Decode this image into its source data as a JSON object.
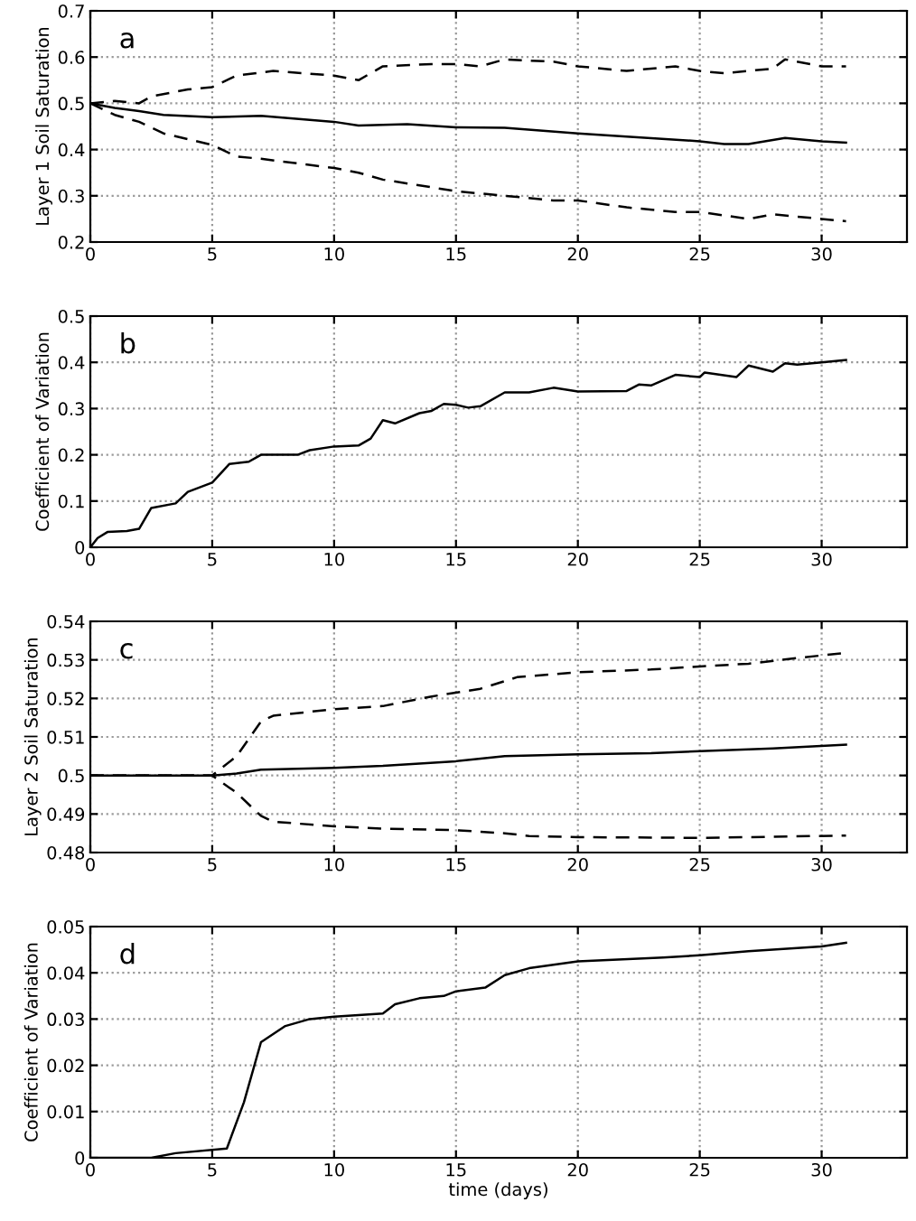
{
  "chart_data": [
    {
      "type": "line",
      "ylabel": "Layer 1 Soil Saturation",
      "annotations": [
        "a"
      ],
      "xlim": [
        0,
        33.5
      ],
      "xticks": [
        0,
        5,
        10,
        15,
        20,
        25,
        30
      ],
      "ylim": [
        0.2,
        0.7
      ],
      "yticks": [
        0.2,
        0.3,
        0.4,
        0.5,
        0.6,
        0.7
      ],
      "grid": true,
      "series": [
        {
          "color": "#000000",
          "line_style": "dashed",
          "x": [
            0,
            1,
            2,
            2.5,
            4,
            5,
            6,
            7.5,
            10,
            11,
            12,
            14,
            15,
            16,
            17,
            19,
            20,
            22,
            24,
            25,
            26,
            28,
            28.5,
            30,
            31
          ],
          "values": [
            0.5,
            0.505,
            0.5,
            0.515,
            0.53,
            0.535,
            0.56,
            0.57,
            0.56,
            0.55,
            0.58,
            0.585,
            0.585,
            0.58,
            0.595,
            0.59,
            0.58,
            0.57,
            0.58,
            0.57,
            0.565,
            0.575,
            0.595,
            0.58,
            0.58
          ]
        },
        {
          "color": "#000000",
          "line_style": "solid",
          "x": [
            0,
            1,
            2,
            3,
            5,
            7,
            10,
            11,
            13,
            15,
            17,
            20,
            22,
            25,
            26,
            27,
            28.5,
            30,
            31
          ],
          "values": [
            0.5,
            0.49,
            0.483,
            0.475,
            0.47,
            0.473,
            0.46,
            0.452,
            0.455,
            0.448,
            0.447,
            0.435,
            0.428,
            0.418,
            0.412,
            0.412,
            0.425,
            0.418,
            0.415
          ]
        },
        {
          "color": "#000000",
          "line_style": "dashed",
          "x": [
            0,
            1,
            2,
            3,
            5,
            6,
            7,
            10,
            11,
            12,
            15,
            17,
            19,
            20,
            22,
            24,
            25,
            27,
            28,
            30,
            31
          ],
          "values": [
            0.5,
            0.475,
            0.46,
            0.435,
            0.41,
            0.385,
            0.38,
            0.36,
            0.35,
            0.335,
            0.31,
            0.3,
            0.29,
            0.29,
            0.275,
            0.265,
            0.265,
            0.25,
            0.26,
            0.25,
            0.245
          ]
        }
      ]
    },
    {
      "type": "line",
      "ylabel": "Coefficient of Variation",
      "annotations": [
        "b"
      ],
      "xlim": [
        0,
        33.5
      ],
      "xticks": [
        0,
        5,
        10,
        15,
        20,
        25,
        30
      ],
      "ylim": [
        0,
        0.5
      ],
      "yticks": [
        0,
        0.1,
        0.2,
        0.3,
        0.4,
        0.5
      ],
      "grid": true,
      "series": [
        {
          "color": "#000000",
          "line_style": "solid",
          "x": [
            0,
            0.3,
            0.7,
            1.5,
            2,
            2.5,
            3.5,
            4,
            5,
            5.7,
            6.5,
            7,
            8.5,
            9,
            10,
            11,
            11.5,
            12,
            12.5,
            13.5,
            14,
            14.5,
            15,
            15.5,
            16,
            17,
            18,
            19,
            20,
            22,
            22.5,
            23,
            24,
            25,
            25.2,
            26.5,
            27,
            28,
            28.5,
            29,
            30,
            31
          ],
          "values": [
            0,
            0.02,
            0.033,
            0.035,
            0.04,
            0.085,
            0.095,
            0.12,
            0.14,
            0.18,
            0.185,
            0.2,
            0.2,
            0.21,
            0.218,
            0.22,
            0.235,
            0.275,
            0.268,
            0.29,
            0.295,
            0.31,
            0.308,
            0.302,
            0.305,
            0.335,
            0.335,
            0.345,
            0.337,
            0.338,
            0.352,
            0.35,
            0.373,
            0.368,
            0.378,
            0.368,
            0.393,
            0.38,
            0.398,
            0.395,
            0.4,
            0.405
          ]
        }
      ]
    },
    {
      "type": "line",
      "ylabel": "Layer 2 Soil Saturation",
      "annotations": [
        "c"
      ],
      "xlim": [
        0,
        33.5
      ],
      "xticks": [
        0,
        5,
        10,
        15,
        20,
        25,
        30
      ],
      "ylim": [
        0.48,
        0.54
      ],
      "yticks": [
        0.48,
        0.49,
        0.5,
        0.51,
        0.52,
        0.53,
        0.54
      ],
      "grid": true,
      "series": [
        {
          "color": "#000000",
          "line_style": "dashed",
          "x": [
            0,
            5,
            6,
            7,
            7.5,
            10,
            12,
            14,
            16,
            17.5,
            20,
            23,
            25,
            27,
            29,
            31
          ],
          "values": [
            0.5,
            0.5,
            0.505,
            0.514,
            0.5155,
            0.5172,
            0.518,
            0.5205,
            0.5225,
            0.5255,
            0.5268,
            0.5275,
            0.5283,
            0.529,
            0.5305,
            0.5318
          ]
        },
        {
          "color": "#000000",
          "line_style": "solid",
          "x": [
            0,
            5,
            6,
            7,
            10,
            12,
            15,
            17,
            20,
            23,
            25,
            28,
            31
          ],
          "values": [
            0.5,
            0.5,
            0.5005,
            0.5015,
            0.502,
            0.5025,
            0.5037,
            0.505,
            0.5055,
            0.5058,
            0.5063,
            0.507,
            0.508
          ]
        },
        {
          "color": "#000000",
          "line_style": "dashed",
          "x": [
            0,
            5,
            6,
            7,
            7.5,
            10,
            12,
            15,
            17,
            18,
            20,
            25,
            27,
            31
          ],
          "values": [
            0.5,
            0.5,
            0.4955,
            0.4895,
            0.488,
            0.4868,
            0.4862,
            0.4858,
            0.485,
            0.4843,
            0.484,
            0.4838,
            0.484,
            0.4844
          ]
        }
      ]
    },
    {
      "type": "line",
      "xlabel": "time (days)",
      "ylabel": "Coefficient of Variation",
      "annotations": [
        "d"
      ],
      "xlim": [
        0,
        33.5
      ],
      "xticks": [
        0,
        5,
        10,
        15,
        20,
        25,
        30
      ],
      "ylim": [
        0,
        0.05
      ],
      "yticks": [
        0,
        0.01,
        0.02,
        0.03,
        0.04,
        0.05
      ],
      "grid": true,
      "series": [
        {
          "color": "#000000",
          "line_style": "solid",
          "x": [
            0,
            2.5,
            3.5,
            5.6,
            6.3,
            7,
            8,
            9,
            10,
            12,
            12.5,
            13.5,
            14.5,
            15,
            16.2,
            17,
            18,
            20,
            23.5,
            25,
            27,
            30,
            31
          ],
          "values": [
            0,
            0,
            0.001,
            0.002,
            0.012,
            0.025,
            0.0285,
            0.03,
            0.0305,
            0.0312,
            0.0332,
            0.0345,
            0.035,
            0.036,
            0.0368,
            0.0395,
            0.041,
            0.0425,
            0.0433,
            0.0438,
            0.0447,
            0.0457,
            0.0465
          ]
        }
      ]
    }
  ]
}
